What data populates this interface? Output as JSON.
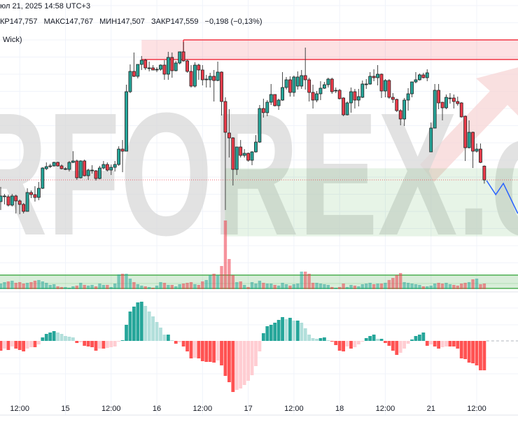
{
  "header": {
    "datetime": "юл 21, 2025 14:58 UTC+3",
    "ohlc": {
      "open": "КР147,757",
      "high": "МАКС147,767",
      "low": "МИН147,507",
      "close": "ЗАКР147,559",
      "change": "−0,198 (−0,13%)"
    },
    "indicator": "Wick)"
  },
  "watermark": {
    "text": "RFOREX.c",
    "color": "#d9d9d9",
    "accent": "#f4c6c6"
  },
  "colors": {
    "up": "#26a69a",
    "down": "#ef3b4a",
    "border": "#1e1e1e",
    "wick": "#444444",
    "supply": "#f23645",
    "demand": "#4caf50",
    "forecast": "#2962ff",
    "hist_up_strong": "#26a69a",
    "hist_up_weak": "#b2dfdb",
    "hist_down_strong": "#ff5252",
    "hist_down_weak": "#ffcdd2"
  },
  "chart_data": {
    "type": "candlestick",
    "interval": "1h",
    "grid": true,
    "x_tick_labels": [
      "12:00",
      "15",
      "12:00",
      "16",
      "12:00",
      "17",
      "12:00",
      "18",
      "12:00",
      "21",
      "12:00"
    ],
    "last_price": 147.56,
    "candles_ohlc": [
      [
        147.25,
        147.46,
        147.13,
        147.33
      ],
      [
        147.33,
        147.36,
        147.21,
        147.33
      ],
      [
        147.32,
        147.35,
        147.18,
        147.2
      ],
      [
        147.2,
        147.36,
        147.18,
        147.33
      ],
      [
        147.33,
        147.35,
        147.08,
        147.26
      ],
      [
        147.26,
        147.28,
        147.07,
        147.21
      ],
      [
        147.21,
        147.23,
        147.08,
        147.11
      ],
      [
        147.11,
        147.44,
        147.11,
        147.38
      ],
      [
        147.38,
        147.41,
        147.3,
        147.35
      ],
      [
        147.35,
        147.47,
        147.25,
        147.31
      ],
      [
        147.31,
        147.53,
        147.27,
        147.44
      ],
      [
        147.44,
        147.74,
        147.43,
        147.73
      ],
      [
        147.72,
        147.81,
        147.7,
        147.75
      ],
      [
        147.76,
        147.79,
        147.73,
        147.76
      ],
      [
        147.76,
        147.82,
        147.75,
        147.81
      ],
      [
        147.81,
        147.82,
        147.75,
        147.76
      ],
      [
        147.76,
        147.78,
        147.71,
        147.72
      ],
      [
        147.72,
        147.74,
        147.7,
        147.72
      ],
      [
        147.71,
        147.83,
        147.68,
        147.81
      ],
      [
        147.81,
        147.97,
        147.8,
        147.83
      ],
      [
        147.83,
        147.85,
        147.56,
        147.59
      ],
      [
        147.59,
        147.84,
        147.58,
        147.83
      ],
      [
        147.83,
        147.85,
        147.61,
        147.62
      ],
      [
        147.62,
        147.72,
        147.56,
        147.7
      ],
      [
        147.7,
        147.77,
        147.65,
        147.7
      ],
      [
        147.69,
        147.7,
        147.55,
        147.58
      ],
      [
        147.58,
        147.76,
        147.57,
        147.73
      ],
      [
        147.73,
        147.83,
        147.71,
        147.78
      ],
      [
        147.78,
        147.81,
        147.68,
        147.7
      ],
      [
        147.7,
        147.78,
        147.63,
        147.74
      ],
      [
        147.74,
        147.83,
        147.68,
        147.78
      ],
      [
        147.78,
        148.04,
        147.76,
        148.0
      ],
      [
        148.0,
        148.13,
        147.67,
        147.97
      ],
      [
        147.97,
        148.92,
        147.97,
        148.82
      ],
      [
        148.82,
        149.21,
        148.8,
        149.11
      ],
      [
        149.11,
        149.38,
        149.03,
        149.04
      ],
      [
        149.04,
        149.21,
        149.01,
        149.21
      ],
      [
        149.21,
        149.33,
        149.13,
        149.27
      ],
      [
        149.27,
        149.29,
        149.13,
        149.16
      ],
      [
        149.16,
        149.25,
        149.11,
        149.16
      ],
      [
        149.16,
        149.2,
        149.13,
        149.13
      ],
      [
        149.14,
        149.17,
        149.1,
        149.14
      ],
      [
        149.14,
        149.21,
        149.12,
        149.2
      ],
      [
        149.2,
        149.27,
        148.99,
        149.07
      ],
      [
        149.07,
        149.39,
        148.99,
        149.31
      ],
      [
        149.31,
        149.38,
        149.02,
        149.12
      ],
      [
        149.12,
        149.26,
        149.11,
        149.23
      ],
      [
        149.23,
        149.39,
        149.21,
        149.39
      ],
      [
        149.39,
        149.53,
        149.25,
        149.26
      ],
      [
        149.26,
        149.28,
        149.09,
        149.11
      ],
      [
        149.11,
        149.2,
        148.88,
        148.9
      ],
      [
        148.9,
        149.24,
        148.88,
        149.2
      ],
      [
        149.2,
        149.22,
        148.99,
        149.13
      ],
      [
        149.13,
        149.2,
        148.91,
        148.99
      ],
      [
        149.0,
        149.06,
        148.88,
        149.0
      ],
      [
        148.99,
        149.09,
        148.88,
        149.04
      ],
      [
        149.04,
        149.13,
        148.68,
        148.98
      ],
      [
        148.98,
        149.25,
        148.97,
        149.1
      ],
      [
        149.1,
        149.11,
        148.48,
        148.68
      ],
      [
        148.68,
        148.74,
        147.13,
        148.24
      ],
      [
        148.23,
        148.57,
        147.88,
        148.16
      ],
      [
        148.16,
        148.17,
        147.48,
        147.71
      ],
      [
        147.71,
        148.03,
        147.63,
        148.03
      ],
      [
        148.03,
        148.13,
        147.88,
        147.91
      ],
      [
        147.91,
        148.0,
        147.88,
        147.94
      ],
      [
        147.94,
        147.95,
        147.82,
        147.84
      ],
      [
        147.84,
        147.97,
        147.77,
        147.96
      ],
      [
        147.96,
        148.2,
        147.95,
        148.1
      ],
      [
        148.1,
        148.63,
        148.09,
        148.58
      ],
      [
        148.58,
        148.72,
        148.45,
        148.52
      ],
      [
        148.52,
        148.7,
        148.47,
        148.67
      ],
      [
        148.67,
        148.93,
        148.63,
        148.78
      ],
      [
        148.78,
        148.78,
        148.61,
        148.62
      ],
      [
        148.62,
        148.72,
        148.56,
        148.7
      ],
      [
        148.7,
        149.1,
        148.69,
        148.88
      ],
      [
        148.88,
        149.03,
        148.85,
        148.99
      ],
      [
        148.99,
        149.04,
        148.75,
        148.81
      ],
      [
        148.81,
        149.05,
        148.75,
        149.03
      ],
      [
        148.9,
        149.11,
        148.85,
        149.03
      ],
      [
        148.9,
        149.13,
        148.86,
        149.05
      ],
      [
        149.05,
        149.45,
        148.85,
        148.99
      ],
      [
        148.99,
        149.02,
        148.68,
        148.81
      ],
      [
        148.81,
        148.92,
        148.58,
        148.7
      ],
      [
        148.7,
        148.83,
        148.67,
        148.79
      ],
      [
        148.79,
        148.97,
        148.7,
        148.87
      ],
      [
        148.87,
        148.96,
        148.86,
        148.92
      ],
      [
        148.92,
        149.02,
        148.88,
        149.0
      ],
      [
        149.0,
        149.02,
        148.79,
        148.82
      ],
      [
        148.84,
        148.88,
        148.8,
        148.84
      ],
      [
        148.84,
        148.86,
        148.71,
        148.72
      ],
      [
        148.73,
        148.74,
        148.47,
        148.49
      ],
      [
        148.49,
        148.68,
        148.48,
        148.66
      ],
      [
        148.66,
        148.88,
        148.52,
        148.82
      ],
      [
        148.82,
        148.86,
        148.58,
        148.7
      ],
      [
        148.7,
        148.86,
        148.61,
        148.75
      ],
      [
        148.74,
        148.98,
        148.73,
        148.93
      ],
      [
        148.93,
        149.0,
        148.86,
        148.93
      ],
      [
        148.93,
        149.1,
        148.92,
        149.04
      ],
      [
        149.04,
        149.14,
        148.97,
        149.02
      ],
      [
        149.02,
        149.2,
        148.91,
        149.07
      ],
      [
        149.07,
        149.08,
        148.73,
        148.83
      ],
      [
        148.83,
        149.0,
        148.74,
        148.98
      ],
      [
        148.98,
        149.0,
        148.72,
        148.74
      ],
      [
        148.74,
        148.8,
        148.66,
        148.71
      ],
      [
        148.71,
        148.72,
        148.53,
        148.55
      ],
      [
        148.55,
        148.57,
        148.34,
        148.43
      ],
      [
        148.43,
        148.73,
        148.33,
        148.7
      ],
      [
        148.7,
        148.87,
        148.55,
        148.79
      ],
      [
        148.79,
        148.96,
        148.74,
        148.96
      ],
      [
        148.96,
        149.1,
        148.94,
        148.99
      ],
      [
        148.99,
        149.08,
        148.98,
        149.06
      ],
      [
        149.06,
        149.09,
        149.01,
        149.02
      ],
      [
        149.02,
        149.14,
        148.97,
        149.09
      ],
      [
        147.96,
        148.38,
        147.96,
        148.3
      ],
      [
        148.3,
        148.93,
        148.3,
        148.84
      ],
      [
        148.84,
        148.93,
        148.57,
        148.66
      ],
      [
        148.67,
        148.67,
        148.41,
        148.59
      ],
      [
        148.59,
        148.78,
        148.57,
        148.74
      ],
      [
        148.73,
        148.8,
        148.65,
        148.73
      ],
      [
        148.73,
        148.78,
        148.58,
        148.68
      ],
      [
        148.68,
        148.75,
        148.62,
        148.65
      ],
      [
        148.66,
        148.67,
        148.45,
        148.46
      ],
      [
        148.47,
        148.48,
        147.83,
        148.02
      ],
      [
        148.02,
        148.41,
        148.01,
        148.24
      ],
      [
        148.24,
        148.25,
        147.73,
        147.97
      ],
      [
        147.97,
        148.08,
        147.95,
        148.0
      ],
      [
        148.0,
        148.08,
        147.8,
        147.81
      ],
      [
        147.757,
        147.767,
        147.507,
        147.559
      ]
    ],
    "volume": [
      8,
      10,
      11,
      12,
      9,
      10,
      8,
      9,
      10,
      12,
      13,
      11,
      9,
      6,
      7,
      4,
      3,
      3,
      2,
      4,
      5,
      9,
      6,
      5,
      6,
      4,
      8,
      6,
      6,
      3,
      8,
      21,
      22,
      22,
      15,
      10,
      7,
      5,
      4,
      3,
      2,
      5,
      10,
      9,
      6,
      6,
      4,
      7,
      8,
      9,
      10,
      7,
      6,
      11,
      13,
      20,
      22,
      20,
      33,
      98,
      43,
      20,
      10,
      11,
      6,
      3,
      10,
      8,
      12,
      9,
      8,
      8,
      6,
      5,
      9,
      7,
      5,
      7,
      8,
      25,
      25,
      22,
      9,
      9,
      8,
      7,
      6,
      3,
      2,
      3,
      8,
      3,
      6,
      5,
      4,
      7,
      8,
      9,
      7,
      8,
      8,
      9,
      13,
      16,
      20,
      23,
      10,
      9,
      8,
      7,
      6,
      4,
      4,
      5,
      8,
      9,
      8,
      9,
      7,
      6,
      5,
      8,
      9,
      10,
      14,
      15,
      7,
      8
    ],
    "histogram": [
      -0.14,
      -0.11,
      -0.13,
      -0.08,
      -0.11,
      -0.13,
      -0.15,
      -0.11,
      -0.09,
      -0.09,
      -0.05,
      0.05,
      0.1,
      0.12,
      0.14,
      0.12,
      0.1,
      0.07,
      0.06,
      0.05,
      -0.03,
      -0.02,
      -0.07,
      -0.08,
      -0.09,
      -0.14,
      -0.11,
      -0.11,
      -0.1,
      -0.09,
      -0.08,
      -0.01,
      0.01,
      0.23,
      0.42,
      0.49,
      0.55,
      0.56,
      0.5,
      0.42,
      0.35,
      0.27,
      0.19,
      0.09,
      0.09,
      0.01,
      -0.04,
      -0.02,
      -0.08,
      -0.15,
      -0.25,
      -0.24,
      -0.25,
      -0.29,
      -0.3,
      -0.3,
      -0.31,
      -0.28,
      -0.35,
      -0.5,
      -0.59,
      -0.73,
      -0.7,
      -0.68,
      -0.63,
      -0.57,
      -0.49,
      -0.36,
      -0.15,
      0.11,
      0.21,
      0.23,
      0.26,
      0.3,
      0.34,
      0.31,
      0.33,
      0.29,
      0.29,
      0.26,
      0.18,
      0.09,
      0.04,
      0.03,
      0.04,
      0.05,
      0.01,
      -0.01,
      -0.06,
      -0.14,
      -0.15,
      -0.08,
      -0.11,
      -0.09,
      -0.05,
      -0.01,
      0.04,
      0.07,
      0.09,
      0.03,
      0.03,
      -0.03,
      -0.07,
      -0.14,
      -0.2,
      -0.17,
      -0.11,
      -0.04,
      0.02,
      0.07,
      0.09,
      0.12,
      -0.07,
      -0.05,
      -0.08,
      -0.11,
      -0.09,
      -0.08,
      -0.08,
      -0.08,
      -0.11,
      -0.25,
      -0.26,
      -0.31,
      -0.32,
      -0.35,
      -0.42,
      -0.42
    ],
    "supply_zone": {
      "top": 149.56,
      "bottom": 149.28,
      "start_bar": 37,
      "outline_start_bar": 48
    },
    "demand_zone": {
      "top": 147.72,
      "bottom": 146.76,
      "start_bar": 59
    },
    "forecast_path": [
      [
        127.6,
        147.55
      ],
      [
        130,
        147.35
      ],
      [
        132,
        147.51
      ],
      [
        135.8,
        147.08
      ]
    ]
  }
}
